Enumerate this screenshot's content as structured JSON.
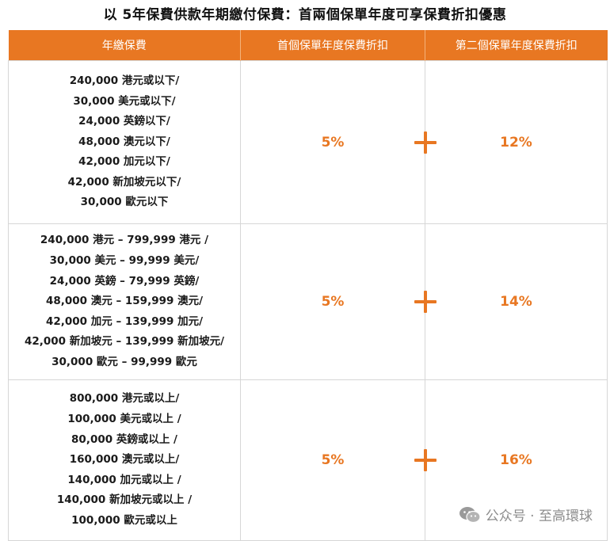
{
  "title": "以 5年保費供款年期繳付保費：首兩個保單年度可享保費折扣優惠",
  "colors": {
    "accent": "#e87722",
    "header_text": "#ffffff",
    "border": "#d6d6d6"
  },
  "table": {
    "headers": [
      "年繳保費",
      "首個保單年度保費折扣",
      "第二個保單年度保費折扣"
    ],
    "rows": [
      {
        "premium_lines": [
          "240,000 港元或以下/",
          "30,000 美元或以下/",
          "24,000 英鎊以下/",
          "48,000 澳元以下/",
          "42,000 加元以下/",
          "42,000 新加坡元以下/",
          "30,000 歐元以下"
        ],
        "first_year": "5%",
        "second_year": "12%"
      },
      {
        "premium_lines": [
          "240,000 港元 – 799,999 港元 /",
          "30,000 美元 – 99,999 美元/",
          "24,000 英鎊 – 79,999 英鎊/",
          "48,000 澳元 – 159,999 澳元/",
          "42,000 加元 – 139,999 加元/",
          "42,000 新加坡元 – 139,999 新加坡元/",
          "30,000 歐元 – 99,999 歐元"
        ],
        "first_year": "5%",
        "second_year": "14%"
      },
      {
        "premium_lines": [
          "800,000 港元或以上/",
          "100,000 美元或以上 /",
          "80,000 英鎊或以上 /",
          "160,000 澳元或以上/",
          "140,000 加元或以上 /",
          "140,000 新加坡元或以上 /",
          "100,000 歐元或以上"
        ],
        "first_year": "5%",
        "second_year": "16%"
      }
    ],
    "plus_icon": "plus-icon"
  },
  "watermark": {
    "text": "公众号 · 至高環球",
    "icon": "wechat-icon"
  }
}
